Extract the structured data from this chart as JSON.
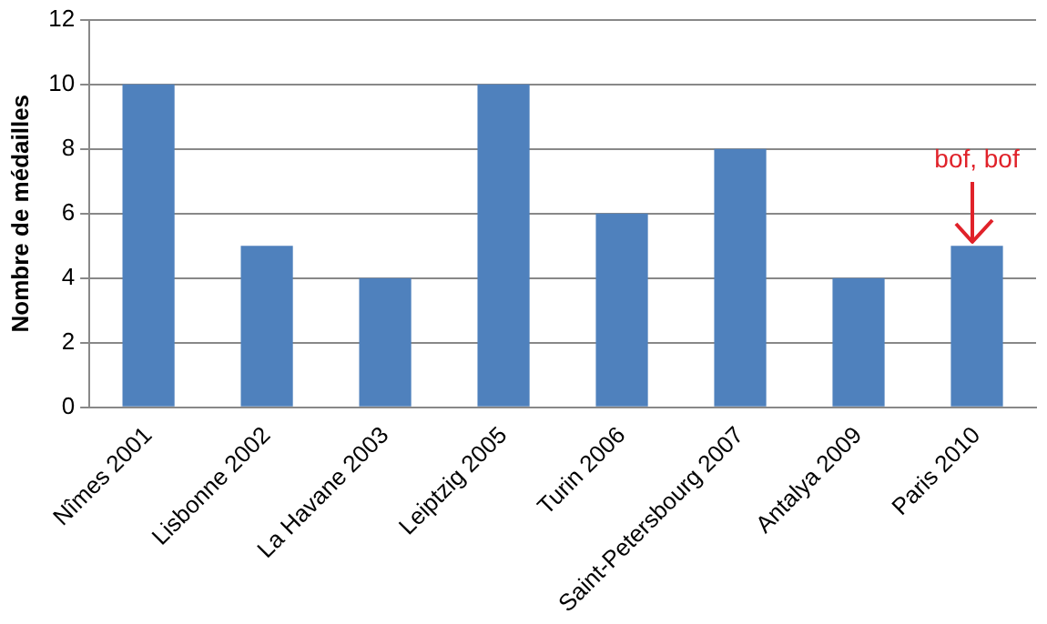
{
  "chart_data": {
    "type": "bar",
    "ylabel": "Nombre de médailles",
    "categories": [
      "Nîmes 2001",
      "Lisbonne 2002",
      "La Havane 2003",
      "Leiptzig 2005",
      "Turin 2006",
      "Saint-Petersbourg 2007",
      "Antalya 2009",
      "Paris 2010"
    ],
    "values": [
      10,
      5,
      4,
      10,
      6,
      8,
      4,
      5
    ],
    "color": "#4f81bd",
    "ylim": [
      0,
      12
    ],
    "yticks": [
      0,
      2,
      4,
      6,
      8,
      10,
      12
    ],
    "grid": "y",
    "annotations": [
      {
        "text": "bof, bof",
        "x": "Paris 2010",
        "y": 5
      }
    ]
  }
}
